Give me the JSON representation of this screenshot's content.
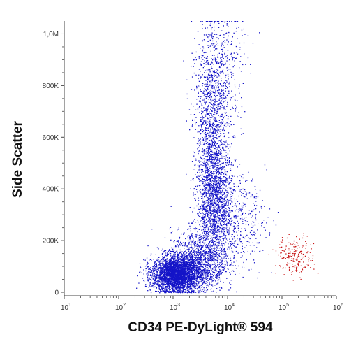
{
  "chart_data": {
    "type": "scatter",
    "xlabel": "CD34 PE-DyLight® 594",
    "ylabel": "Side Scatter",
    "x_scale": "log",
    "xlim": [
      10,
      1000000
    ],
    "ylim": [
      0,
      1050000
    ],
    "x_ticks": [
      {
        "base": "10",
        "exp": "1"
      },
      {
        "base": "10",
        "exp": "2"
      },
      {
        "base": "10",
        "exp": "3"
      },
      {
        "base": "10",
        "exp": "4"
      },
      {
        "base": "10",
        "exp": "5"
      },
      {
        "base": "10",
        "exp": "6"
      }
    ],
    "y_ticks": [
      "0",
      "200K",
      "400K",
      "600K",
      "800K",
      "1,0M"
    ],
    "y_tick_values": [
      0,
      200000,
      400000,
      600000,
      800000,
      1000000
    ],
    "grid": false,
    "series": [
      {
        "color": "#1414c8",
        "clusters": [
          {
            "x_log_center": 3.05,
            "x_log_sd": 0.22,
            "y_center": 70000,
            "y_sd": 35000,
            "count": 3400
          },
          {
            "x_log_center": 3.45,
            "x_log_sd": 0.25,
            "y_center": 120000,
            "y_sd": 60000,
            "count": 1200
          },
          {
            "x_log_center": 3.75,
            "x_log_sd": 0.16,
            "y_center": 350000,
            "y_sd": 120000,
            "count": 1500
          },
          {
            "x_log_center": 3.7,
            "x_log_sd": 0.15,
            "y_center": 620000,
            "y_sd": 170000,
            "count": 1100
          },
          {
            "x_log_center": 3.85,
            "x_log_sd": 0.22,
            "y_center": 850000,
            "y_sd": 130000,
            "count": 450
          },
          {
            "x_log_center": 4.1,
            "x_log_sd": 0.3,
            "y_center": 280000,
            "y_sd": 90000,
            "count": 500
          }
        ]
      },
      {
        "color": "#c81414",
        "clusters": [
          {
            "x_log_center": 5.25,
            "x_log_sd": 0.17,
            "y_center": 140000,
            "y_sd": 38000,
            "count": 200
          }
        ]
      }
    ]
  }
}
